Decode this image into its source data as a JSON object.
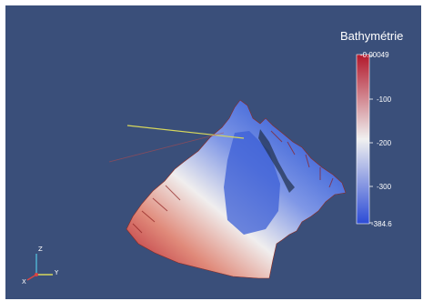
{
  "legend": {
    "title": "Bathymétrie",
    "ticks": [
      "-0.00049",
      "-100",
      "-200",
      "-300",
      "-384.6"
    ],
    "range": [
      -384.6,
      -0.00049
    ],
    "colors": {
      "top": "#b2182b",
      "middle": "#f0f0f0",
      "bottom": "#2c4bd6"
    }
  },
  "viewport": {
    "background": "#3a4f7a",
    "mesh_colors": {
      "shore": "#c43a2a",
      "mid": "#e9e3e3",
      "deep": "#3f63d8"
    }
  },
  "orientation_axes": {
    "x_color": "#d94444",
    "y_color": "#d8d85c",
    "z_color": "#50b0d0",
    "labels": [
      "Z",
      "Y",
      "X"
    ]
  }
}
